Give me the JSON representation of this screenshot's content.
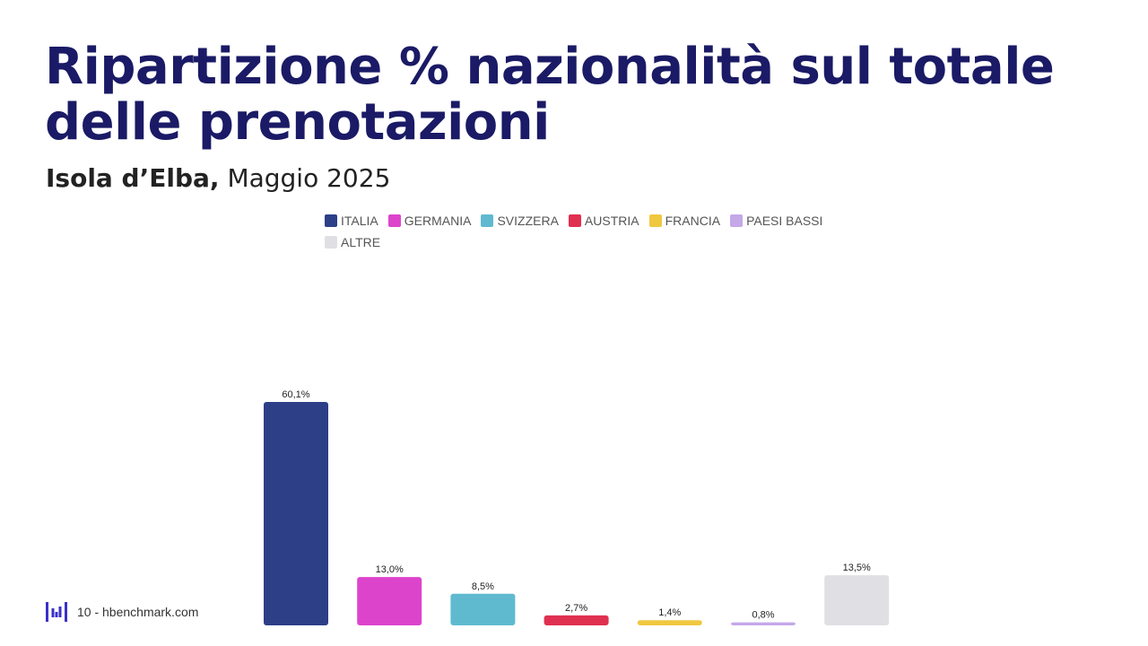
{
  "header": {
    "title": "Ripartizione % nazionalità sul totale delle prenotazioni",
    "subtitle_place": "Isola d’Elba,",
    "subtitle_date": " Maggio 2025"
  },
  "footer": {
    "page_label": "10 - hbenchmark.com"
  },
  "chart_data": {
    "type": "bar",
    "categories": [
      "ITALIA",
      "GERMANIA",
      "SVIZZERA",
      "AUSTRIA",
      "FRANCIA",
      "PAESI BASSI",
      "ALTRE"
    ],
    "values": [
      60.1,
      13.0,
      8.5,
      2.7,
      1.4,
      0.8,
      13.5
    ],
    "value_labels": [
      "60,1%",
      "13,0%",
      "8,5%",
      "2,7%",
      "1,4%",
      "0,8%",
      "13,5%"
    ],
    "colors": [
      "#2d3f87",
      "#dd44cc",
      "#5fbad0",
      "#e03050",
      "#f0c840",
      "#c4a8e8",
      "#e0e0e4"
    ],
    "legend_position": "top",
    "grid": false,
    "ylim": [
      0,
      100
    ]
  }
}
